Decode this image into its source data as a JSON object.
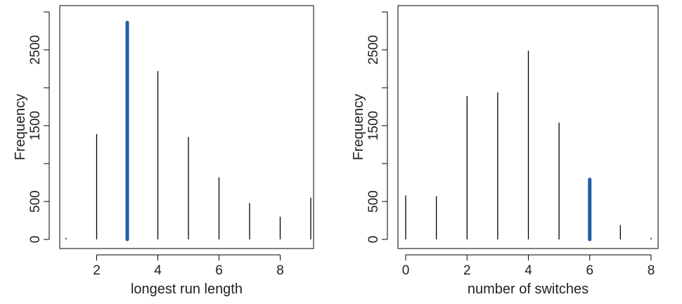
{
  "chart_data": [
    {
      "type": "bar",
      "subtype": "frequency-spikes",
      "xlabel": "longest run length",
      "ylabel": "Frequency",
      "x": [
        1,
        2,
        3,
        4,
        5,
        6,
        7,
        8,
        9
      ],
      "values": [
        20,
        1390,
        2860,
        2220,
        1350,
        820,
        480,
        300,
        550
      ],
      "highlight_x": 3,
      "highlight_color": "#1f5fa8",
      "line_color": "#000000",
      "xlim": [
        0.8,
        9.2
      ],
      "ylim": [
        0,
        3000
      ],
      "xticks": [
        2,
        4,
        6,
        8
      ],
      "yticks": [
        0,
        500,
        1500,
        2500
      ],
      "yminor_ticks": [
        1000,
        2000,
        3000
      ]
    },
    {
      "type": "bar",
      "subtype": "frequency-spikes",
      "xlabel": "number of switches",
      "ylabel": "Frequency",
      "x": [
        0,
        1,
        2,
        3,
        4,
        5,
        6,
        7,
        8
      ],
      "values": [
        580,
        570,
        1890,
        1940,
        2490,
        1540,
        790,
        190,
        20
      ],
      "highlight_x": 6,
      "highlight_color": "#1f5fa8",
      "line_color": "#000000",
      "xlim": [
        -0.1,
        8.1
      ],
      "ylim": [
        0,
        3000
      ],
      "xticks": [
        0,
        2,
        4,
        6,
        8
      ],
      "yticks": [
        0,
        500,
        1500,
        2500
      ],
      "yminor_ticks": [
        1000,
        2000,
        3000
      ]
    }
  ]
}
